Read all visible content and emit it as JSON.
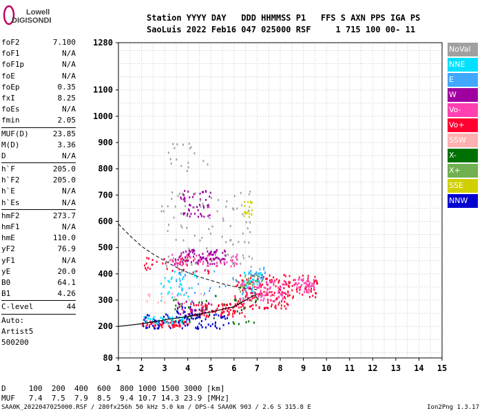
{
  "logo": {
    "line1": "Lowell",
    "line2": "DIGISONDE"
  },
  "header": {
    "line1": "Station YYYY DAY   DDD HHMMSS P1   FFS S AXN PPS IGA PS",
    "line2": "SaoLuis 2022 Feb16 047 025000 RSF     1 715 100 00- 11"
  },
  "params": {
    "g1": [
      {
        "k": "foF2",
        "v": "7.100"
      },
      {
        "k": "foF1",
        "v": "N/A"
      },
      {
        "k": "foF1p",
        "v": "N/A"
      },
      {
        "k": "foE",
        "v": "N/A"
      },
      {
        "k": "foEp",
        "v": "0.35"
      },
      {
        "k": "fxI",
        "v": "8.25"
      },
      {
        "k": "foEs",
        "v": "N/A"
      },
      {
        "k": "fmin",
        "v": "2.05"
      }
    ],
    "g2": [
      {
        "k": "MUF(D)",
        "v": "23.85"
      },
      {
        "k": "M(D)",
        "v": "3.36"
      },
      {
        "k": "D",
        "v": "N/A"
      }
    ],
    "g3": [
      {
        "k": "h`F",
        "v": "205.0"
      },
      {
        "k": "h`F2",
        "v": "205.0"
      },
      {
        "k": "h`E",
        "v": "N/A"
      },
      {
        "k": "h`Es",
        "v": "N/A"
      }
    ],
    "g4": [
      {
        "k": "hmF2",
        "v": "273.7"
      },
      {
        "k": "hmF1",
        "v": "N/A"
      },
      {
        "k": "hmE",
        "v": "110.0"
      },
      {
        "k": "yF2",
        "v": "76.9"
      },
      {
        "k": "yF1",
        "v": "N/A"
      },
      {
        "k": "yE",
        "v": "20.0"
      },
      {
        "k": "B0",
        "v": "64.1"
      },
      {
        "k": "B1",
        "v": "4.26"
      }
    ],
    "g5": [
      {
        "k": "C-level",
        "v": "44"
      }
    ],
    "g6": [
      "Auto:",
      "Artist5",
      "500200"
    ]
  },
  "legend": [
    {
      "label": "NoVal",
      "color": "#a0a0a0"
    },
    {
      "label": "NNE",
      "color": "#00e0ff"
    },
    {
      "label": "E",
      "color": "#40a8ff"
    },
    {
      "label": "W",
      "color": "#a000a0"
    },
    {
      "label": "Vo-",
      "color": "#ff40b0"
    },
    {
      "label": "Vo+",
      "color": "#ff0030"
    },
    {
      "label": "SSW",
      "color": "#ffb0b0"
    },
    {
      "label": "X-",
      "color": "#007000"
    },
    {
      "label": "X+",
      "color": "#70b050"
    },
    {
      "label": "SSE",
      "color": "#d0d000"
    },
    {
      "label": "NNW",
      "color": "#0000d0"
    }
  ],
  "footer": {
    "line1": "D     100  200  400  600  800 1000 1500 3000 [km]",
    "line2": "MUF   7.4  7.5  7.9  8.5  9.4 10.7 14.3 23.9 [MHz]",
    "source": "SAA0K_2022047025000.RSF / 280fx256h 50 kHz 5.0 km / DPS-4 SAA0K 903 / 2.6 S 315.8 E",
    "version": "Ion2Png 1.3.17"
  },
  "chart_data": {
    "type": "scatter",
    "title": "",
    "xlabel": "",
    "ylabel": "",
    "xlim": [
      1,
      15
    ],
    "ylim": [
      80,
      1280
    ],
    "x_ticks": [
      1,
      2,
      3,
      4,
      5,
      6,
      7,
      8,
      9,
      10,
      11,
      12,
      13,
      14,
      15
    ],
    "y_ticks": [
      80,
      200,
      300,
      400,
      500,
      600,
      700,
      800,
      900,
      1000,
      1100,
      1280
    ],
    "grid": true,
    "series": [
      {
        "name": "Vo+",
        "color": "#ff0030",
        "clusters": [
          {
            "x": [
              2.0,
              4.0
            ],
            "y": [
              200,
              225
            ],
            "n": 60
          },
          {
            "x": [
              4.0,
              6.5
            ],
            "y": [
              240,
              290
            ],
            "n": 90
          },
          {
            "x": [
              6.0,
              8.4
            ],
            "y": [
              270,
              400
            ],
            "n": 150
          },
          {
            "x": [
              8.2,
              9.6
            ],
            "y": [
              310,
              400
            ],
            "n": 45
          },
          {
            "x": [
              2.1,
              5.2
            ],
            "y": [
              405,
              470
            ],
            "n": 40
          }
        ]
      },
      {
        "name": "Vo-",
        "color": "#ff40b0",
        "clusters": [
          {
            "x": [
              6.2,
              8.2
            ],
            "y": [
              300,
              380
            ],
            "n": 90
          },
          {
            "x": [
              8.6,
              9.5
            ],
            "y": [
              330,
              390
            ],
            "n": 45
          },
          {
            "x": [
              3.2,
              6.2
            ],
            "y": [
              430,
              480
            ],
            "n": 55
          }
        ]
      },
      {
        "name": "NNW",
        "color": "#0000d0",
        "clusters": [
          {
            "x": [
              2.0,
              5.8
            ],
            "y": [
              195,
              250
            ],
            "n": 80
          },
          {
            "x": [
              3.4,
              4.5
            ],
            "y": [
              230,
              280
            ],
            "n": 30
          }
        ]
      },
      {
        "name": "W",
        "color": "#a000a0",
        "clusters": [
          {
            "x": [
              3.4,
              5.6
            ],
            "y": [
              440,
              500
            ],
            "n": 80
          },
          {
            "x": [
              3.6,
              5.0
            ],
            "y": [
              620,
              720
            ],
            "n": 50
          },
          {
            "x": [
              3.5,
              5.0
            ],
            "y": [
              250,
              300
            ],
            "n": 25
          }
        ]
      },
      {
        "name": "NNE",
        "color": "#00e0ff",
        "clusters": [
          {
            "x": [
              2.0,
              3.8
            ],
            "y": [
              215,
              240
            ],
            "n": 40
          },
          {
            "x": [
              2.8,
              4.4
            ],
            "y": [
              290,
              420
            ],
            "n": 35
          },
          {
            "x": [
              6.4,
              7.2
            ],
            "y": [
              330,
              420
            ],
            "n": 30
          }
        ]
      },
      {
        "name": "E",
        "color": "#40a8ff",
        "clusters": [
          {
            "x": [
              3.4,
              6.4
            ],
            "y": [
              300,
              420
            ],
            "n": 30
          },
          {
            "x": [
              6.6,
              7.4
            ],
            "y": [
              360,
              430
            ],
            "n": 25
          }
        ]
      },
      {
        "name": "X-",
        "color": "#007000",
        "clusters": [
          {
            "x": [
              3.0,
              7.0
            ],
            "y": [
              210,
              320
            ],
            "n": 35
          }
        ]
      },
      {
        "name": "X+",
        "color": "#70b050",
        "clusters": [
          {
            "x": [
              6.2,
              7.2
            ],
            "y": [
              300,
              400
            ],
            "n": 30
          }
        ]
      },
      {
        "name": "SSE",
        "color": "#d0d000",
        "clusters": [
          {
            "x": [
              6.4,
              6.8
            ],
            "y": [
              620,
              680
            ],
            "n": 18
          }
        ]
      },
      {
        "name": "SSW",
        "color": "#ffb0b0",
        "clusters": [
          {
            "x": [
              2.0,
              4.8
            ],
            "y": [
              290,
              330
            ],
            "n": 16
          }
        ]
      },
      {
        "name": "NoVal",
        "color": "#a0a0a0",
        "clusters": [
          {
            "x": [
              2.8,
              6.8
            ],
            "y": [
              430,
              720
            ],
            "n": 90
          },
          {
            "x": [
              3.0,
              5.0
            ],
            "y": [
              780,
              900
            ],
            "n": 18
          }
        ]
      }
    ],
    "profile_curve": {
      "x": [
        1.0,
        1.5,
        2.0,
        3.0,
        4.0,
        5.0,
        6.0,
        6.5,
        6.9,
        7.05
      ],
      "y": [
        200,
        205,
        210,
        225,
        238,
        255,
        275,
        300,
        320,
        300
      ]
    },
    "dashed_curve": {
      "x": [
        1.0,
        1.5,
        2.0,
        2.5,
        3.0,
        3.5,
        4.0,
        4.5,
        5.0,
        5.5,
        6.0,
        6.5,
        7.0
      ],
      "y": [
        590,
        545,
        505,
        475,
        450,
        425,
        405,
        388,
        375,
        362,
        352,
        345,
        340
      ]
    }
  }
}
